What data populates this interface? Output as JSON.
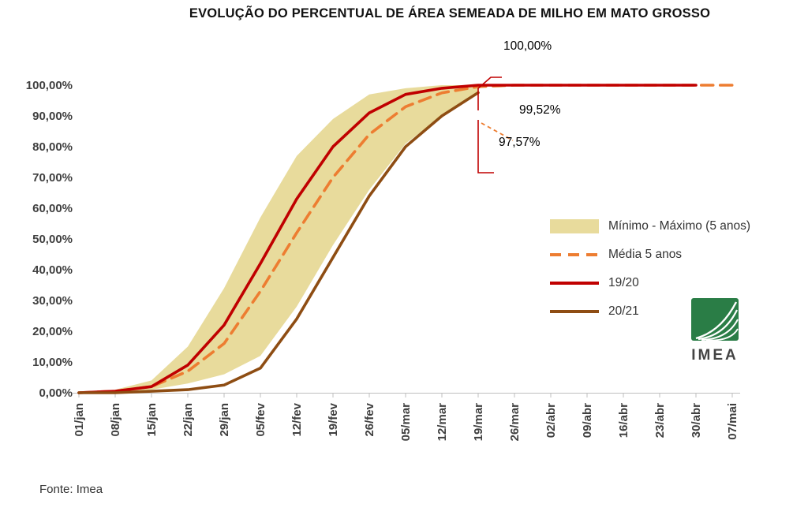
{
  "title": "EVOLUÇÃO DO PERCENTUAL DE ÁREA SEMEADA DE MILHO EM MATO GROSSO",
  "source": "Fonte: Imea",
  "logo_text": "IMEA",
  "colors": {
    "band": "#e8db9c",
    "media": "#ed7d31",
    "s1920": "#c00000",
    "s2021": "#8e4d13",
    "axis": "#bfbfbf",
    "logo_green": "#2a7d46"
  },
  "annotations": [
    {
      "label": "100,00%",
      "series": "19/20"
    },
    {
      "label": "99,52%",
      "series": "Média 5 anos"
    },
    {
      "label": "97,57%",
      "series": "20/21"
    }
  ],
  "legend": [
    {
      "label": "Mínimo - Máximo (5 anos)",
      "type": "band",
      "color": "#e8db9c"
    },
    {
      "label": "Média 5 anos",
      "type": "dashed",
      "color": "#ed7d31"
    },
    {
      "label": "19/20",
      "type": "line",
      "color": "#c00000"
    },
    {
      "label": "20/21",
      "type": "line",
      "color": "#8e4d13"
    }
  ],
  "chart_data": {
    "type": "line",
    "title": "EVOLUÇÃO DO PERCENTUAL DE ÁREA SEMEADA DE MILHO EM MATO GROSSO",
    "xlabel": "",
    "ylabel": "",
    "ylim": [
      0,
      100
    ],
    "categories": [
      "01/jan",
      "08/jan",
      "15/jan",
      "22/jan",
      "29/jan",
      "05/fev",
      "12/fev",
      "19/fev",
      "26/fev",
      "05/mar",
      "12/mar",
      "19/mar",
      "26/mar",
      "02/abr",
      "09/abr",
      "16/abr",
      "23/abr",
      "30/abr",
      "07/mai"
    ],
    "y_ticks": [
      "0,00%",
      "10,00%",
      "20,00%",
      "30,00%",
      "40,00%",
      "50,00%",
      "60,00%",
      "70,00%",
      "80,00%",
      "90,00%",
      "100,00%"
    ],
    "band": {
      "name": "Mínimo - Máximo (5 anos)",
      "color": "#e8db9c",
      "max": [
        0,
        1,
        4,
        15,
        34,
        57,
        77,
        89,
        97,
        99,
        100,
        100,
        null,
        null,
        null,
        null,
        null,
        null,
        null
      ],
      "min": [
        0,
        0,
        1,
        3,
        6,
        12,
        28,
        48,
        66,
        81,
        90,
        98,
        null,
        null,
        null,
        null,
        null,
        null,
        null
      ]
    },
    "series": [
      {
        "name": "Média 5 anos",
        "color": "#ed7d31",
        "style": "dashed",
        "values": [
          0,
          0.5,
          2,
          7,
          16,
          33,
          52,
          70,
          84,
          93,
          97.5,
          99.52,
          100,
          100,
          100,
          100,
          100,
          100,
          100
        ]
      },
      {
        "name": "19/20",
        "color": "#c00000",
        "style": "solid",
        "values": [
          0,
          0.5,
          2,
          9,
          22,
          42,
          63,
          80,
          91,
          97,
          99,
          100,
          100,
          100,
          100,
          100,
          100,
          100,
          null
        ]
      },
      {
        "name": "20/21",
        "color": "#8e4d13",
        "style": "solid",
        "values": [
          0,
          0,
          0.5,
          1,
          2.5,
          8,
          24,
          44,
          64,
          80,
          90,
          97.57,
          null,
          null,
          null,
          null,
          null,
          null,
          null
        ]
      }
    ],
    "final_values": {
      "19/20": "100,00%",
      "Média 5 anos": "99,52%",
      "20/21": "97,57%"
    }
  }
}
